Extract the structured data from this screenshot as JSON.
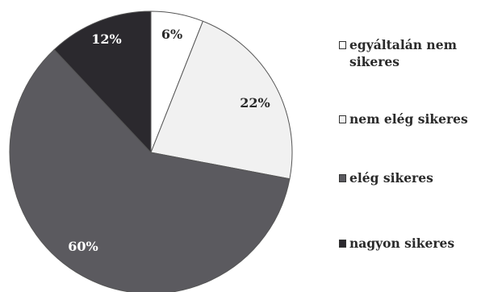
{
  "chart_data": {
    "type": "pie",
    "title": "",
    "slices": [
      {
        "label": "egyáltalán nem sikeres",
        "value": 6,
        "display": "6%",
        "color": "#ffffff"
      },
      {
        "label": "nem elég sikeres",
        "value": 22,
        "display": "22%",
        "color": "#f1f1f1"
      },
      {
        "label": "elég sikeres",
        "value": 60,
        "display": "60%",
        "color": "#5b5a5f"
      },
      {
        "label": "nagyon sikeres",
        "value": 12,
        "display": "12%",
        "color": "#2b292e"
      }
    ],
    "start_angle_deg": 0,
    "direction": "clockwise",
    "legend_position": "right",
    "outline_color": "#555555"
  }
}
